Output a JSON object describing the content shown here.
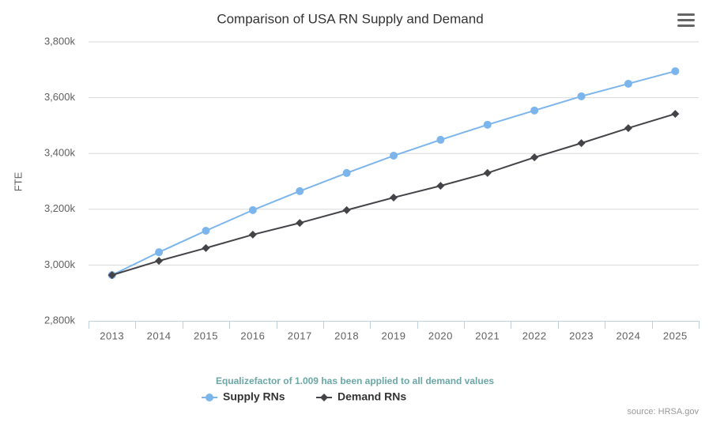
{
  "chart_data": {
    "type": "line",
    "title": "Comparison of USA RN Supply and Demand",
    "ylabel": "FTE",
    "caption": "Equalizefactor of 1.009 has been applied to all demand values",
    "source": "source: HRSA.gov",
    "categories": [
      "2013",
      "2014",
      "2015",
      "2016",
      "2017",
      "2018",
      "2019",
      "2020",
      "2021",
      "2022",
      "2023",
      "2024",
      "2025"
    ],
    "series": [
      {
        "name": "Supply RNs",
        "color": "#7cb5ec",
        "marker": "circle",
        "values": [
          2964,
          3046,
          3123,
          3197,
          3265,
          3330,
          3392,
          3449,
          3503,
          3554,
          3605,
          3650,
          3695
        ]
      },
      {
        "name": "Demand RNs",
        "color": "#434348",
        "marker": "diamond",
        "values": [
          2964,
          3015,
          3061,
          3109,
          3151,
          3197,
          3242,
          3284,
          3330,
          3386,
          3437,
          3491,
          3542
        ]
      }
    ],
    "ylim": [
      2800,
      3800
    ],
    "yticks": [
      {
        "value": 2800,
        "label": "2,800k"
      },
      {
        "value": 3000,
        "label": "3,000k"
      },
      {
        "value": 3200,
        "label": "3,200k"
      },
      {
        "value": 3400,
        "label": "3,400k"
      },
      {
        "value": 3600,
        "label": "3,600k"
      },
      {
        "value": 3800,
        "label": "3,800k"
      }
    ],
    "grid": true,
    "legend": "bottom"
  }
}
